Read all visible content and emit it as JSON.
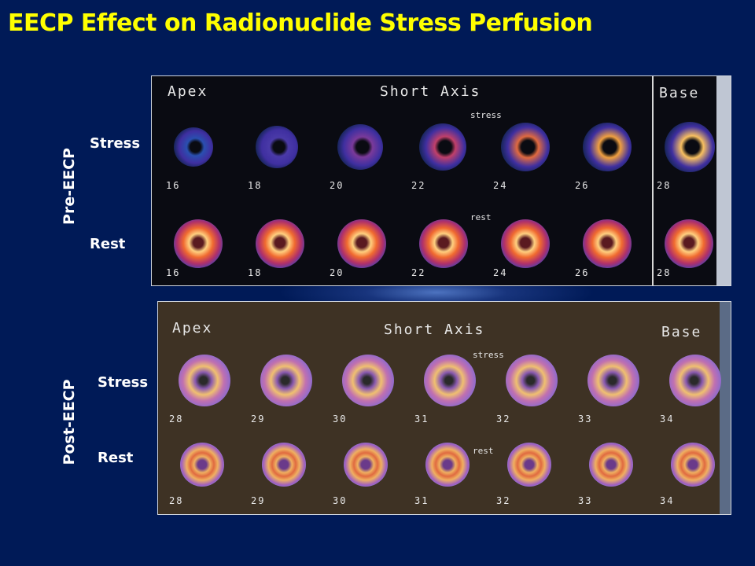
{
  "title": "EECP Effect on Radionuclide Stress Perfusion",
  "pre": {
    "group_label": "Pre-EECP",
    "stress_label": "Stress",
    "rest_label": "Rest",
    "header_apex": "Apex",
    "header_axis": "Short Axis",
    "header_base": "Base",
    "stress_word": "stress",
    "rest_word": "rest",
    "stress_slices": [
      "16",
      "18",
      "20",
      "22",
      "24",
      "26",
      "28"
    ],
    "rest_slices": [
      "16",
      "18",
      "20",
      "22",
      "24",
      "26",
      "28"
    ]
  },
  "post": {
    "group_label": "Post-EECP",
    "stress_label": "Stress",
    "rest_label": "Rest",
    "header_apex": "Apex",
    "header_axis": "Short Axis",
    "header_base": "Base",
    "stress_word": "stress",
    "rest_word": "rest",
    "stress_slices": [
      "28",
      "29",
      "30",
      "31",
      "32",
      "33",
      "34"
    ],
    "rest_slices": [
      "28",
      "29",
      "30",
      "31",
      "32",
      "33",
      "34"
    ]
  },
  "colors": {
    "background": "#001a57",
    "title": "#ffff00",
    "pre_panel": "#0a0b12",
    "post_panel": "#3e3224"
  }
}
